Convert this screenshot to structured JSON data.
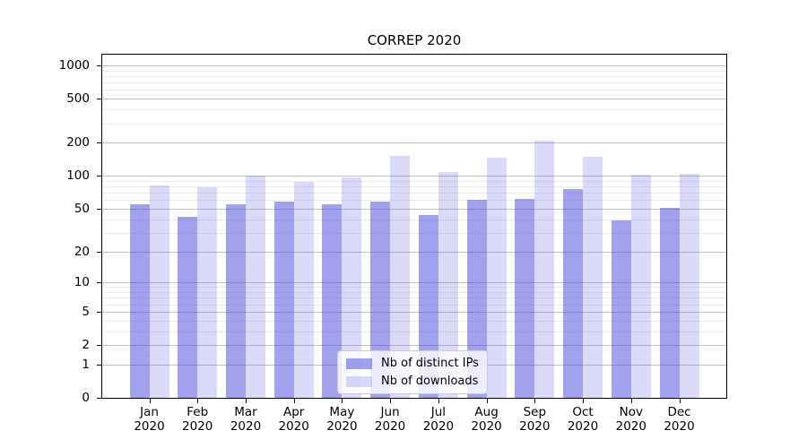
{
  "chart_data": {
    "type": "bar",
    "title": "CORREP 2020",
    "categories": [
      "Jan 2020",
      "Feb 2020",
      "Mar 2020",
      "Apr 2020",
      "May 2020",
      "Jun 2020",
      "Jul 2020",
      "Aug 2020",
      "Sep 2020",
      "Oct 2020",
      "Nov 2020",
      "Dec 2020"
    ],
    "series": [
      {
        "name": "Nb of distinct IPs",
        "values": [
          55,
          42,
          55,
          58,
          55,
          58,
          44,
          60,
          61,
          75,
          39,
          51
        ],
        "color": "rgba(68,68,221,0.5)"
      },
      {
        "name": "Nb of downloads",
        "values": [
          81,
          78,
          101,
          88,
          96,
          151,
          108,
          145,
          209,
          149,
          102,
          104
        ],
        "color": "rgba(68,68,221,0.2)"
      }
    ],
    "xlabel": "",
    "ylabel": "",
    "yscale": "log1p",
    "ylim": [
      0,
      1250
    ],
    "y_ticks": [
      0,
      1,
      2,
      5,
      10,
      20,
      50,
      100,
      200,
      500,
      1000
    ],
    "y_minor_ticks": [
      3,
      4,
      6,
      7,
      8,
      9,
      30,
      40,
      60,
      70,
      80,
      90,
      300,
      400,
      600,
      700,
      800,
      900
    ],
    "grid": true,
    "legend_position": "lower center",
    "colors": {
      "major_grid": "#c3c3c3",
      "minor_grid": "#ebebeb",
      "spine": "#000000",
      "background": "#ffffff"
    }
  }
}
